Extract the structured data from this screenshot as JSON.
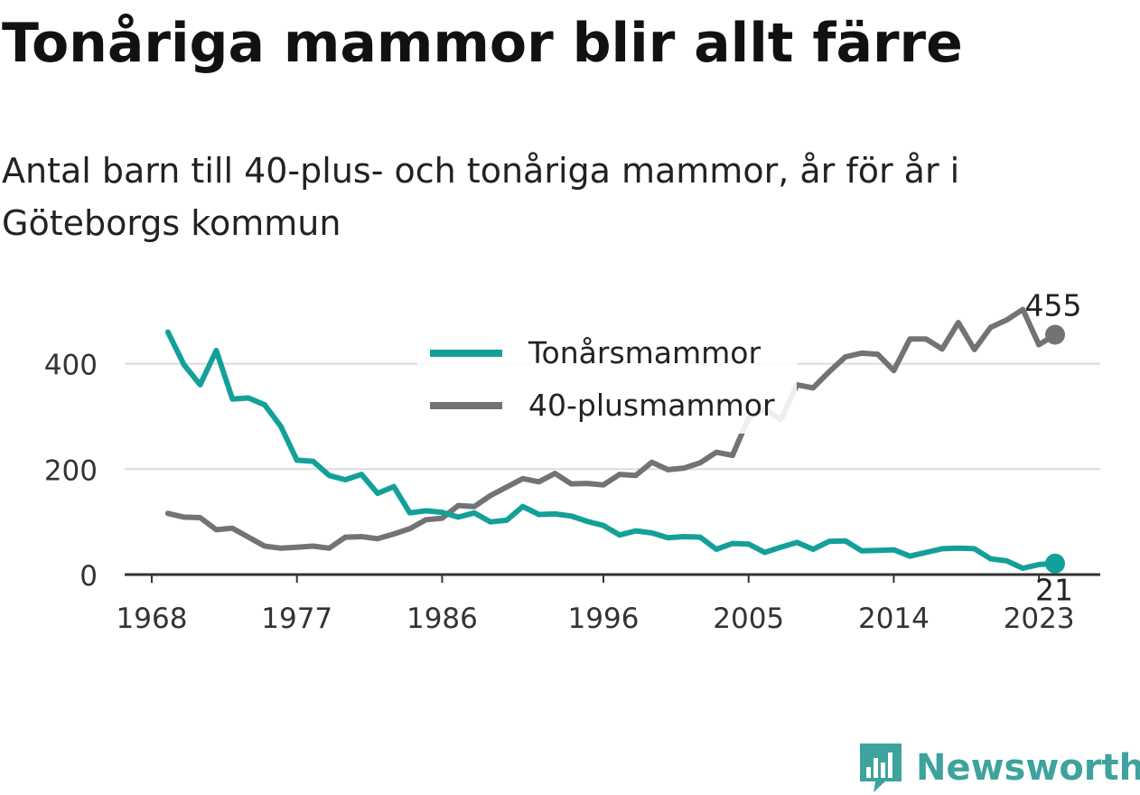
{
  "title": "Tonåriga mammor blir allt färre",
  "subtitle": "Antal barn till 40-plus- och tonåriga mammor, år för år i Göteborgs kommun",
  "brand": {
    "name": "Newsworthy",
    "logo_icon": "bar-chart-speech-bubble-icon",
    "color": "#3ea39d"
  },
  "chart_data": {
    "type": "line",
    "x_ticks": [
      1968,
      1977,
      1986,
      1996,
      2005,
      2014,
      2023
    ],
    "y_ticks": [
      0,
      200,
      400
    ],
    "xlim": [
      1968,
      2024
    ],
    "ylim": [
      0,
      500
    ],
    "grid": true,
    "legend_placement": "top-center",
    "x": [
      1969,
      1970,
      1971,
      1972,
      1973,
      1974,
      1975,
      1976,
      1977,
      1978,
      1979,
      1980,
      1981,
      1982,
      1983,
      1984,
      1985,
      1986,
      1987,
      1988,
      1989,
      1990,
      1991,
      1992,
      1993,
      1994,
      1995,
      1996,
      1997,
      1998,
      1999,
      2000,
      2001,
      2002,
      2003,
      2004,
      2005,
      2006,
      2007,
      2008,
      2009,
      2010,
      2011,
      2012,
      2013,
      2014,
      2015,
      2016,
      2017,
      2018,
      2019,
      2020,
      2021,
      2022,
      2023,
      2024
    ],
    "series": [
      {
        "name": "Tonårsmammor",
        "color": "#14a09a",
        "end_label": "21",
        "values": [
          460,
          398,
          360,
          425,
          333,
          335,
          322,
          281,
          217,
          215,
          188,
          180,
          190,
          154,
          167,
          117,
          121,
          118,
          109,
          117,
          100,
          103,
          129,
          114,
          115,
          111,
          101,
          93,
          75,
          83,
          79,
          70,
          72,
          71,
          48,
          59,
          58,
          42,
          52,
          61,
          48,
          63,
          64,
          45,
          46,
          47,
          35,
          42,
          49,
          50,
          49,
          30,
          26,
          12,
          19,
          21
        ]
      },
      {
        "name": "40-plusmammor",
        "color": "#727277",
        "end_label": "455",
        "values": [
          116,
          109,
          108,
          85,
          88,
          71,
          54,
          50,
          52,
          54,
          50,
          71,
          72,
          68,
          77,
          87,
          104,
          107,
          131,
          129,
          150,
          166,
          182,
          176,
          192,
          172,
          173,
          170,
          190,
          188,
          213,
          199,
          202,
          212,
          232,
          226,
          297,
          314,
          294,
          360,
          354,
          385,
          413,
          420,
          418,
          387,
          447,
          447,
          428,
          478,
          427,
          469,
          483,
          503,
          436,
          455
        ]
      }
    ]
  }
}
